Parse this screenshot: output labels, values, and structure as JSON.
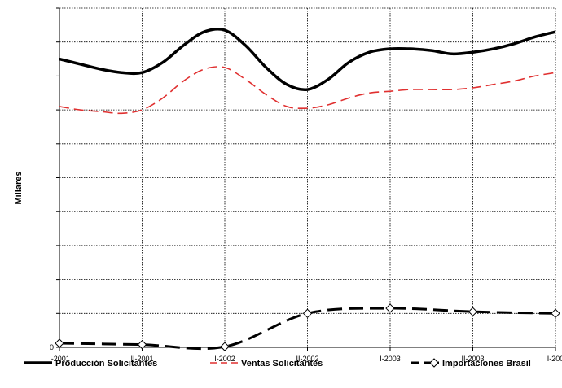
{
  "chart_data": {
    "type": "line",
    "title": "",
    "xlabel": "",
    "ylabel": "Millares",
    "categories": [
      "I-2001",
      "II-2001",
      "I-2002",
      "II-2002",
      "I-2003",
      "II-2003",
      "I-200"
    ],
    "ylim": [
      0,
      10
    ],
    "yticks_shown": [
      "0"
    ],
    "grid": true,
    "legend_position": "bottom",
    "series": [
      {
        "name": "Producción Solicitantes",
        "color": "#000000",
        "style": "solid",
        "marker": "none",
        "x": [
          0,
          0.25,
          0.5,
          0.75,
          1,
          1.25,
          1.5,
          1.75,
          2,
          2.25,
          2.5,
          2.75,
          3,
          3.25,
          3.5,
          3.75,
          4,
          4.25,
          4.5,
          4.75,
          5,
          5.25,
          5.5,
          5.75,
          6
        ],
        "values": [
          8.5,
          8.35,
          8.2,
          8.1,
          8.1,
          8.4,
          8.9,
          9.3,
          9.35,
          8.9,
          8.25,
          7.75,
          7.6,
          7.9,
          8.4,
          8.7,
          8.8,
          8.8,
          8.75,
          8.65,
          8.7,
          8.8,
          8.95,
          9.15,
          9.3
        ]
      },
      {
        "name": "Ventas Solicitantes",
        "color": "#e03030",
        "style": "dashed",
        "marker": "none",
        "x": [
          0,
          0.25,
          0.5,
          0.75,
          1,
          1.25,
          1.5,
          1.75,
          2,
          2.25,
          2.5,
          2.75,
          3,
          3.25,
          3.5,
          3.75,
          4,
          4.25,
          4.5,
          4.75,
          5,
          5.25,
          5.5,
          5.75,
          6
        ],
        "values": [
          7.1,
          7.0,
          6.95,
          6.9,
          7.0,
          7.35,
          7.85,
          8.2,
          8.25,
          7.9,
          7.45,
          7.1,
          7.05,
          7.15,
          7.35,
          7.5,
          7.55,
          7.6,
          7.6,
          7.6,
          7.65,
          7.75,
          7.85,
          8.0,
          8.1
        ]
      },
      {
        "name": "Importaciones Brasil",
        "color": "#000000",
        "style": "dashed",
        "marker": "diamond",
        "x": [
          0,
          1,
          2,
          3,
          4,
          5,
          6
        ],
        "values": [
          0.12,
          0.08,
          0.02,
          1.0,
          1.15,
          1.05,
          1.0
        ]
      }
    ]
  }
}
